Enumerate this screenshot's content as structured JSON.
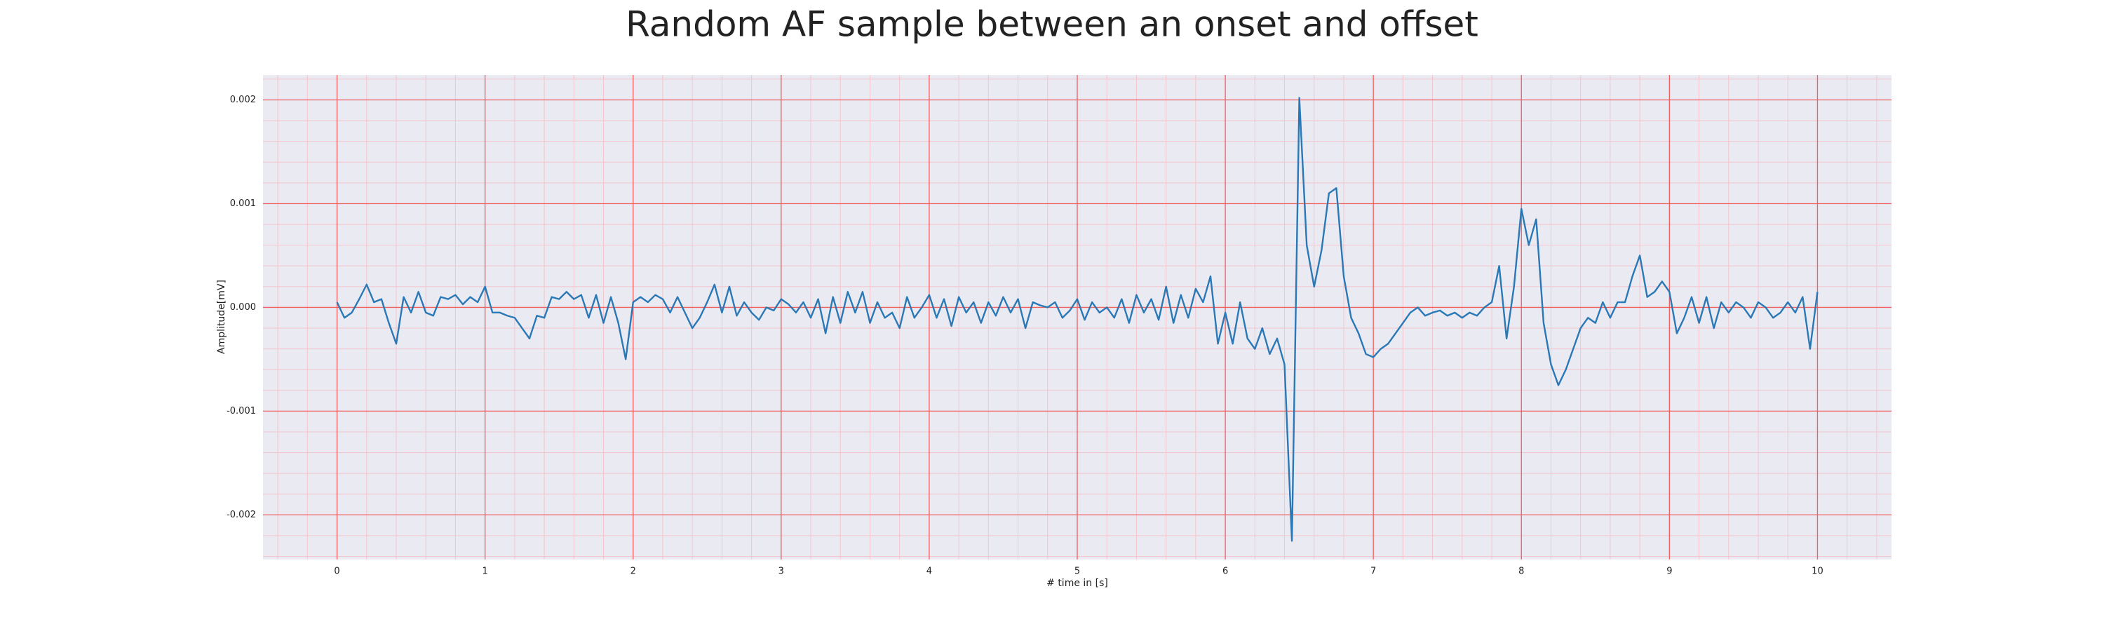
{
  "chart_data": {
    "type": "line",
    "title": "Random AF sample between an onset and offset",
    "xlabel": "# time in [s]",
    "ylabel": "Amplitude[mV]",
    "color": "#2a78b5",
    "xlim": [
      -0.5,
      10.5
    ],
    "ylim": [
      -0.00243,
      0.00224
    ],
    "xticks": [
      0,
      1,
      2,
      3,
      4,
      5,
      6,
      7,
      8,
      9,
      10
    ],
    "yticks": [
      -0.002,
      -0.001,
      {
        "value": 0,
        "label": "0.000"
      },
      0.001,
      0.002
    ],
    "grid": true,
    "grid_color": "#f06060",
    "minor_grid": true,
    "minor_divisions": 5,
    "minor_grid_color": "#f4c4cc",
    "background": "#eaeaf2",
    "x": [
      0,
      0.05,
      0.1,
      0.15,
      0.2,
      0.25,
      0.3,
      0.35,
      0.4,
      0.45,
      0.5,
      0.55,
      0.6,
      0.65,
      0.7,
      0.75,
      0.8,
      0.85,
      0.9,
      0.95,
      1,
      1.05,
      1.1,
      1.15,
      1.2,
      1.25,
      1.3,
      1.35,
      1.4,
      1.45,
      1.5,
      1.55,
      1.6,
      1.65,
      1.7,
      1.75,
      1.8,
      1.85,
      1.9,
      1.95,
      2,
      2.05,
      2.1,
      2.15,
      2.2,
      2.25,
      2.3,
      2.35,
      2.4,
      2.45,
      2.5,
      2.55,
      2.6,
      2.65,
      2.7,
      2.75,
      2.8,
      2.85,
      2.9,
      2.95,
      3,
      3.05,
      3.1,
      3.15,
      3.2,
      3.25,
      3.3,
      3.35,
      3.4,
      3.45,
      3.5,
      3.55,
      3.6,
      3.65,
      3.7,
      3.75,
      3.8,
      3.85,
      3.9,
      3.95,
      4,
      4.05,
      4.1,
      4.15,
      4.2,
      4.25,
      4.3,
      4.35,
      4.4,
      4.45,
      4.5,
      4.55,
      4.6,
      4.65,
      4.7,
      4.75,
      4.8,
      4.85,
      4.9,
      4.95,
      5,
      5.05,
      5.1,
      5.15,
      5.2,
      5.25,
      5.3,
      5.35,
      5.4,
      5.45,
      5.5,
      5.55,
      5.6,
      5.65,
      5.7,
      5.75,
      5.8,
      5.85,
      5.9,
      5.95,
      6,
      6.05,
      6.1,
      6.15,
      6.2,
      6.25,
      6.3,
      6.35,
      6.4,
      6.45,
      6.5,
      6.55,
      6.6,
      6.65,
      6.7,
      6.75,
      6.8,
      6.85,
      6.9,
      6.95,
      7,
      7.05,
      7.1,
      7.15,
      7.2,
      7.25,
      7.3,
      7.35,
      7.4,
      7.45,
      7.5,
      7.55,
      7.6,
      7.65,
      7.7,
      7.75,
      7.8,
      7.85,
      7.9,
      7.95,
      8,
      8.05,
      8.1,
      8.15,
      8.2,
      8.25,
      8.3,
      8.35,
      8.4,
      8.45,
      8.5,
      8.55,
      8.6,
      8.65,
      8.7,
      8.75,
      8.8,
      8.85,
      8.9,
      8.95,
      9,
      9.05,
      9.1,
      9.15,
      9.2,
      9.25,
      9.3,
      9.35,
      9.4,
      9.45,
      9.5,
      9.55,
      9.6,
      9.65,
      9.7,
      9.75,
      9.8,
      9.85,
      9.9,
      9.95,
      10
    ],
    "values": [
      5e-05,
      -0.0001,
      -5e-05,
      8e-05,
      0.00022,
      5e-05,
      8e-05,
      -0.00015,
      -0.00035,
      0.0001,
      -5e-05,
      0.00015,
      -5e-05,
      -8e-05,
      0.0001,
      8e-05,
      0.00012,
      3e-05,
      0.0001,
      5e-05,
      0.0002,
      -5e-05,
      -5e-05,
      -8e-05,
      -0.0001,
      -0.0002,
      -0.0003,
      -8e-05,
      -0.0001,
      0.0001,
      8e-05,
      0.00015,
      8e-05,
      0.00012,
      -0.0001,
      0.00012,
      -0.00015,
      0.0001,
      -0.00015,
      -0.0005,
      5e-05,
      0.0001,
      5e-05,
      0.00012,
      8e-05,
      -5e-05,
      0.0001,
      -5e-05,
      -0.0002,
      -0.0001,
      5e-05,
      0.00022,
      -5e-05,
      0.0002,
      -8e-05,
      5e-05,
      -5e-05,
      -0.00012,
      0,
      -3e-05,
      8e-05,
      3e-05,
      -5e-05,
      5e-05,
      -0.0001,
      8e-05,
      -0.00025,
      0.0001,
      -0.00015,
      0.00015,
      -5e-05,
      0.00015,
      -0.00015,
      5e-05,
      -0.0001,
      -5e-05,
      -0.0002,
      0.0001,
      -0.0001,
      0,
      0.00012,
      -0.0001,
      8e-05,
      -0.00018,
      0.0001,
      -5e-05,
      5e-05,
      -0.00015,
      5e-05,
      -8e-05,
      0.0001,
      -5e-05,
      8e-05,
      -0.0002,
      5e-05,
      2e-05,
      0,
      5e-05,
      -0.0001,
      -3e-05,
      8e-05,
      -0.00012,
      5e-05,
      -5e-05,
      0,
      -0.0001,
      8e-05,
      -0.00015,
      0.00012,
      -5e-05,
      8e-05,
      -0.00012,
      0.0002,
      -0.00015,
      0.00012,
      -0.0001,
      0.00018,
      5e-05,
      0.0003,
      -0.00035,
      -5e-05,
      -0.00035,
      5e-05,
      -0.0003,
      -0.0004,
      -0.0002,
      -0.00045,
      -0.0003,
      -0.00055,
      -0.00225,
      0.00202,
      0.0006,
      0.0002,
      0.00055,
      0.0011,
      0.00115,
      0.0003,
      -0.0001,
      -0.00025,
      -0.00045,
      -0.00048,
      -0.0004,
      -0.00035,
      -0.00025,
      -0.00015,
      -5e-05,
      0,
      -8e-05,
      -5e-05,
      -3e-05,
      -8e-05,
      -5e-05,
      -0.0001,
      -5e-05,
      -8e-05,
      0,
      5e-05,
      0.0004,
      -0.0003,
      0.0002,
      0.00095,
      0.0006,
      0.00085,
      -0.00015,
      -0.00055,
      -0.00075,
      -0.0006,
      -0.0004,
      -0.0002,
      -0.0001,
      -0.00015,
      5e-05,
      -0.0001,
      5e-05,
      5e-05,
      0.0003,
      0.0005,
      0.0001,
      0.00015,
      0.00025,
      0.00015,
      -0.00025,
      -0.0001,
      0.0001,
      -0.00015,
      0.0001,
      -0.0002,
      5e-05,
      -5e-05,
      5e-05,
      0,
      -0.0001,
      5e-05,
      0,
      -0.0001,
      -5e-05,
      5e-05,
      -5e-05,
      0.0001,
      -0.0004,
      0.00015
    ]
  }
}
